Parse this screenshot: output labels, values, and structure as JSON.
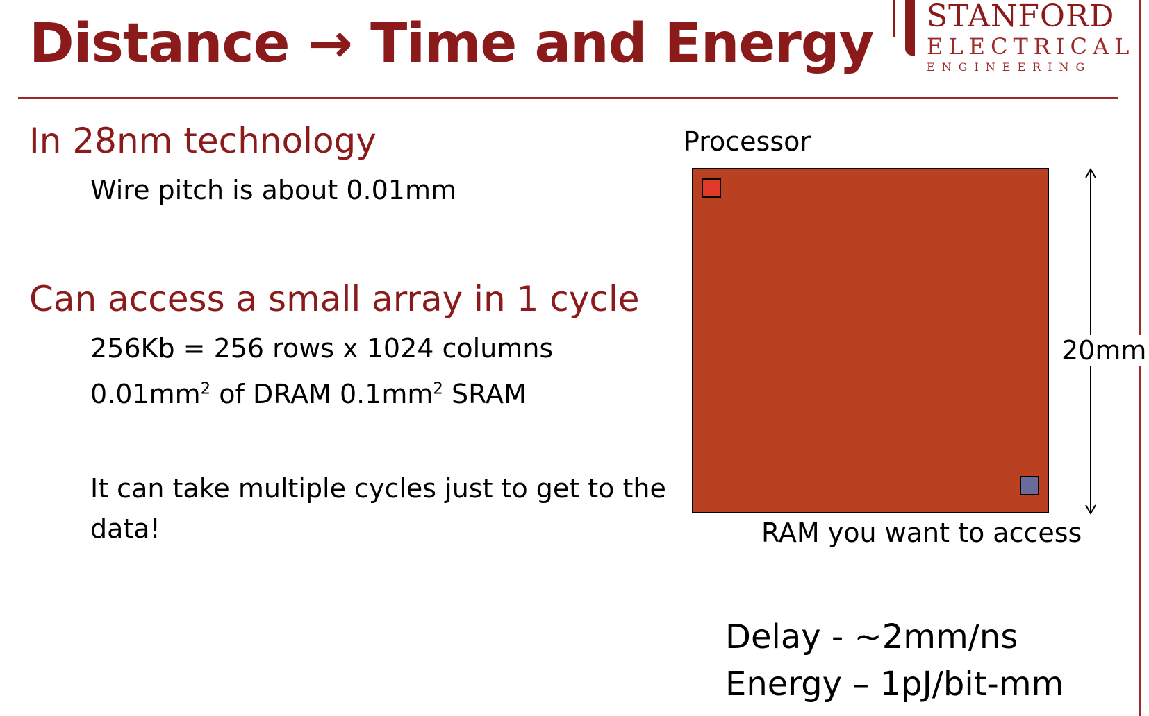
{
  "slide": {
    "title_part1": "Distance",
    "title_arrow": "→",
    "title_part2": "Time and Energy"
  },
  "logo": {
    "line1": "STANFORD",
    "line2": "ELECTRICAL",
    "line3": "ENGINEERING"
  },
  "sections": {
    "tech_heading": "In 28nm technology",
    "wire_pitch": "Wire pitch is about 0.01mm",
    "array_heading": "Can access a small array in 1 cycle",
    "array_size": "256Kb = 256 rows x 1024 columns",
    "area_dram_value": "0.01mm",
    "area_exp": "2",
    "area_mid": " of DRAM 0.1mm",
    "area_sram": " SRAM",
    "multi_cycle_line1": "It can take multiple cycles just to get to the",
    "multi_cycle_line2": "data!"
  },
  "diagram": {
    "processor_label": "Processor",
    "dimension_label": "20mm",
    "ram_label": "RAM you want to access",
    "chip_color": "#b94020",
    "cpu_color": "#e23a2a",
    "ram_color": "#6b6b9a"
  },
  "metrics": {
    "delay": "Delay - ~2mm/ns",
    "energy": "Energy – 1pJ/bit-mm"
  }
}
